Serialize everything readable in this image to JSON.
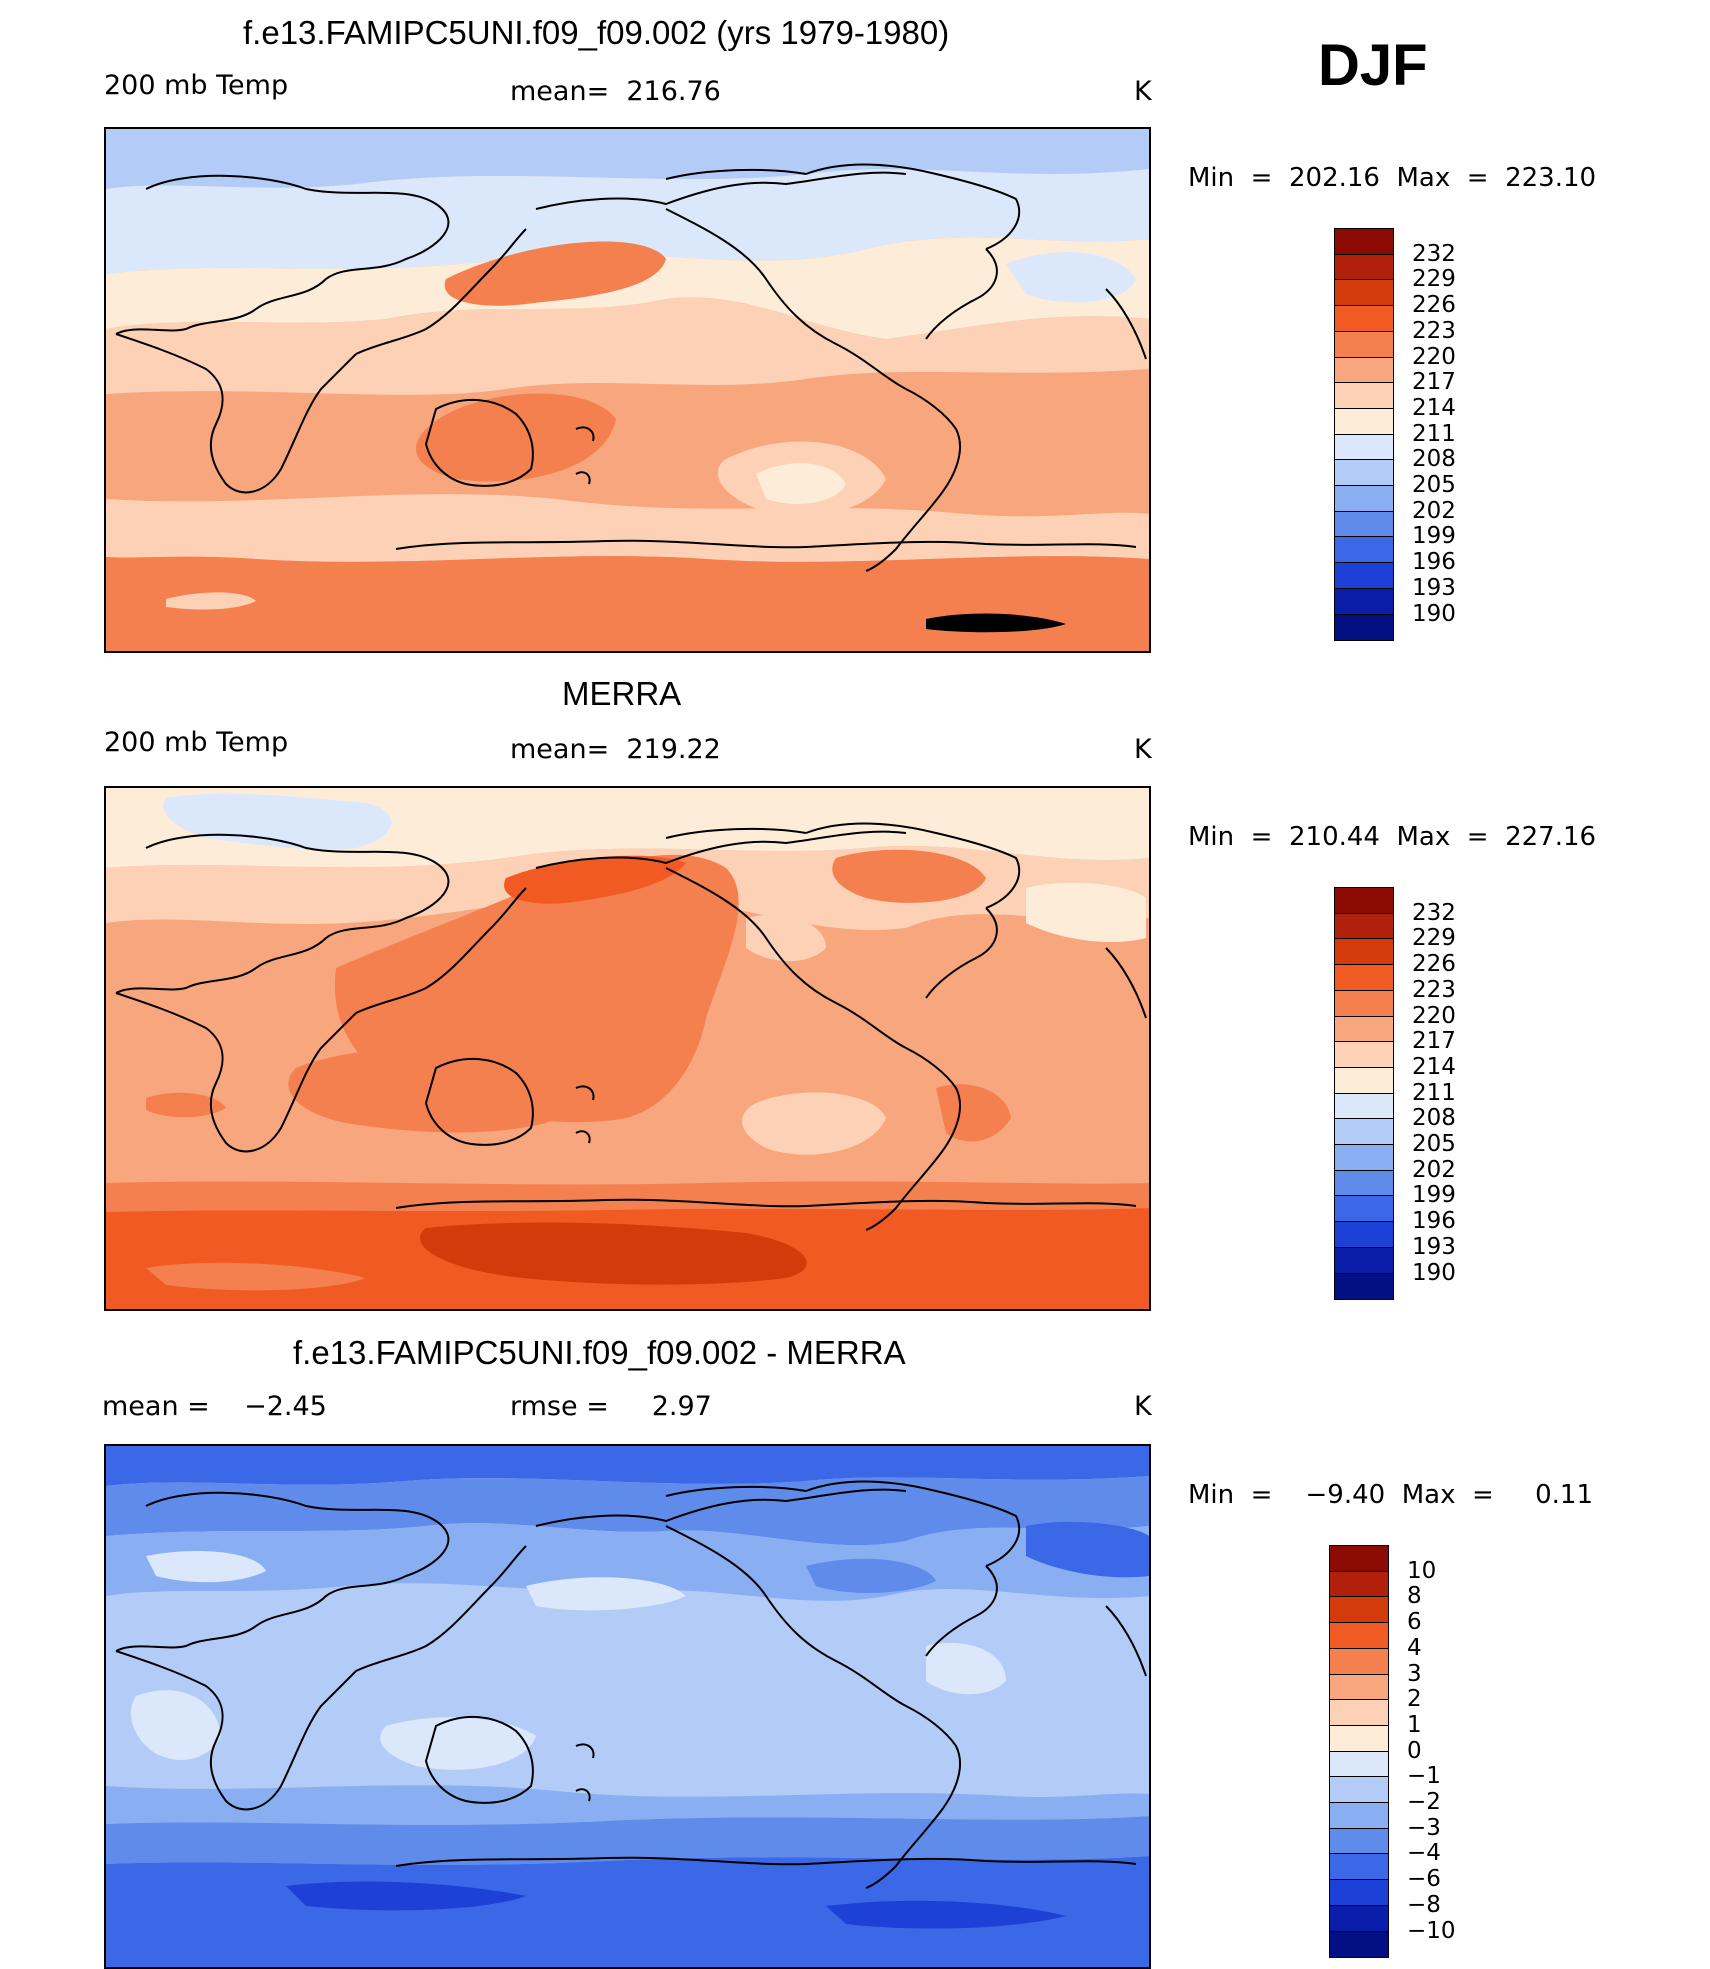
{
  "season": "DJF",
  "panels": [
    {
      "title": "f.e13.FAMIPC5UNI.f09_f09.002 (yrs 1979-1980)",
      "left_label": "200 mb Temp",
      "center_label": "mean=  216.76",
      "right_label": "K",
      "minmax": "Min  =  202.16  Max  =  223.10",
      "colorbar": {
        "labels": [
          "232",
          "229",
          "226",
          "223",
          "220",
          "217",
          "214",
          "211",
          "208",
          "205",
          "202",
          "199",
          "196",
          "193",
          "190"
        ],
        "colors": [
          "#8b0a02",
          "#b0200b",
          "#d43b0b",
          "#f15a22",
          "#f47f4f",
          "#f8a67d",
          "#fcd1b5",
          "#fdecd8",
          "#dbe8fb",
          "#b3ccf7",
          "#8aaef2",
          "#5f8bea",
          "#3a68e6",
          "#1d40d6",
          "#0a1eaa",
          "#031083"
        ]
      },
      "field_colors": {
        "base": "#f8a67d",
        "warm": "#f47f4f",
        "cool": "#fcd1b5",
        "cold": "#fdecd8",
        "ice": "#dbe8fb",
        "ice2": "#b3ccf7"
      }
    },
    {
      "title": "MERRA",
      "left_label": "200 mb Temp",
      "center_label": "mean=  219.22",
      "right_label": "K",
      "minmax": "Min  =  210.44  Max  =  227.16",
      "colorbar": {
        "labels": [
          "232",
          "229",
          "226",
          "223",
          "220",
          "217",
          "214",
          "211",
          "208",
          "205",
          "202",
          "199",
          "196",
          "193",
          "190"
        ],
        "colors": [
          "#8b0a02",
          "#b0200b",
          "#d43b0b",
          "#f15a22",
          "#f47f4f",
          "#f8a67d",
          "#fcd1b5",
          "#fdecd8",
          "#dbe8fb",
          "#b3ccf7",
          "#8aaef2",
          "#5f8bea",
          "#3a68e6",
          "#1d40d6",
          "#0a1eaa",
          "#031083"
        ]
      },
      "field_colors": {
        "base": "#f8a67d",
        "warm": "#f47f4f",
        "hot": "#f15a22",
        "hot2": "#d43b0b",
        "cool": "#fcd1b5",
        "cold": "#fdecd8",
        "ice": "#dbe8fb"
      }
    },
    {
      "title": "f.e13.FAMIPC5UNI.f09_f09.002 - MERRA",
      "left_label": "mean =    −2.45",
      "center_label": "rmse =     2.97",
      "right_label": "K",
      "minmax": "Min  =    −9.40  Max  =     0.11",
      "colorbar": {
        "labels": [
          "10",
          "8",
          "6",
          "4",
          "3",
          "2",
          "1",
          "0",
          "−1",
          "−2",
          "−3",
          "−4",
          "−6",
          "−8",
          "−10"
        ],
        "colors": [
          "#8b0a02",
          "#b0200b",
          "#d43b0b",
          "#f15a22",
          "#f47f4f",
          "#f8a67d",
          "#fcd1b5",
          "#fdecd8",
          "#dbe8fb",
          "#b3ccf7",
          "#8aaef2",
          "#5f8bea",
          "#3a68e6",
          "#1d40d6",
          "#0a1eaa",
          "#031083"
        ]
      },
      "field_colors": {
        "base": "#b3ccf7",
        "pale": "#dbe8fb",
        "mid": "#8aaef2",
        "deep": "#5f8bea",
        "deeper": "#3a68e6",
        "deepest": "#1d40d6"
      }
    }
  ]
}
